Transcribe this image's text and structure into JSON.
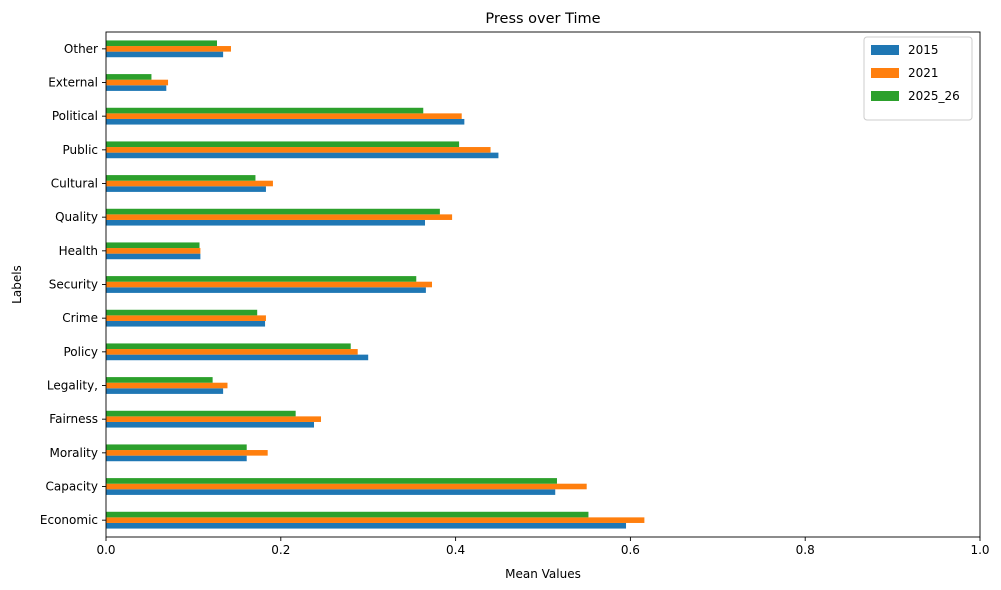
{
  "chart_data": {
    "type": "bar",
    "orientation": "horizontal",
    "title": "Press over Time",
    "xlabel": "Mean Values",
    "ylabel": "Labels",
    "xlim": [
      0,
      1.0
    ],
    "xticks": [
      "0.0",
      "0.2",
      "0.4",
      "0.6",
      "0.8",
      "1.0"
    ],
    "grid": false,
    "legend_position": "top-right",
    "categories": [
      "Economic",
      "Capacity",
      "Morality",
      "Fairness",
      "Legality,",
      "Policy",
      "Crime",
      "Security",
      "Health",
      "Quality",
      "Cultural",
      "Public",
      "Political",
      "External",
      "Other"
    ],
    "series": [
      {
        "name": "2015",
        "color": "#1f77b4",
        "values": [
          0.595,
          0.514,
          0.161,
          0.238,
          0.134,
          0.3,
          0.182,
          0.366,
          0.108,
          0.365,
          0.183,
          0.449,
          0.41,
          0.069,
          0.134
        ]
      },
      {
        "name": "2021",
        "color": "#ff7f0e",
        "values": [
          0.616,
          0.55,
          0.185,
          0.246,
          0.139,
          0.288,
          0.183,
          0.373,
          0.108,
          0.396,
          0.191,
          0.44,
          0.407,
          0.071,
          0.143
        ]
      },
      {
        "name": "2025_26",
        "color": "#2ca02c",
        "values": [
          0.552,
          0.516,
          0.161,
          0.217,
          0.122,
          0.28,
          0.173,
          0.355,
          0.107,
          0.382,
          0.171,
          0.404,
          0.363,
          0.052,
          0.127
        ]
      }
    ]
  }
}
